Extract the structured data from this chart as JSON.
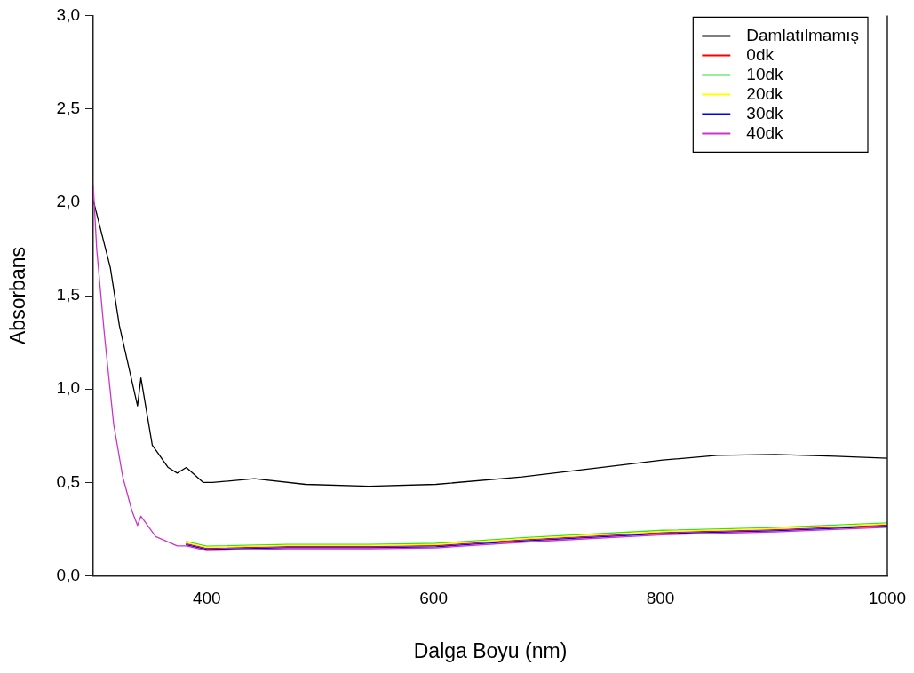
{
  "chart_data": {
    "type": "line",
    "xlabel": "Dalga Boyu (nm)",
    "ylabel": "Absorbans",
    "xlim": [
      300,
      1000
    ],
    "ylim": [
      0,
      3
    ],
    "xticks": [
      400,
      600,
      800,
      1000
    ],
    "yticks": [
      {
        "value": 0,
        "label": "0,0"
      },
      {
        "value": 0.5,
        "label": "0,5"
      },
      {
        "value": 1,
        "label": "1,0"
      },
      {
        "value": 1.5,
        "label": "1,5"
      },
      {
        "value": 2,
        "label": "2,0"
      },
      {
        "value": 2.5,
        "label": "2,5"
      },
      {
        "value": 3,
        "label": "3,0"
      }
    ],
    "grid": false,
    "legend": "top right",
    "marker": "none",
    "line_style": "solid",
    "series": [
      {
        "name": "Damlatılmamış",
        "color": "#000000",
        "x": [
          300,
          315,
          323,
          339,
          342,
          352,
          366,
          374,
          382,
          397,
          405,
          442,
          487,
          543,
          602,
          678,
          747,
          802,
          850,
          901,
          954,
          1000
        ],
        "values": [
          2.01,
          1.65,
          1.34,
          0.91,
          1.06,
          0.7,
          0.58,
          0.55,
          0.58,
          0.5,
          0.5,
          0.52,
          0.49,
          0.48,
          0.49,
          0.53,
          0.58,
          0.62,
          0.645,
          0.65,
          0.64,
          0.63
        ]
      },
      {
        "name": "0dk",
        "color": "#ff0000",
        "x": [
          382,
          400,
          471,
          543,
          602,
          678,
          802,
          901,
          1000
        ],
        "values": [
          0.172,
          0.147,
          0.157,
          0.157,
          0.162,
          0.192,
          0.232,
          0.247,
          0.272
        ]
      },
      {
        "name": "10dk",
        "color": "#33dd33",
        "x": [
          382,
          400,
          471,
          543,
          602,
          678,
          802,
          901,
          1000
        ],
        "values": [
          0.184,
          0.159,
          0.169,
          0.169,
          0.174,
          0.204,
          0.244,
          0.259,
          0.284
        ]
      },
      {
        "name": "20dk",
        "color": "#ffff00",
        "x": [
          382,
          400,
          471,
          543,
          602,
          678,
          802,
          901,
          1000
        ],
        "values": [
          0.178,
          0.153,
          0.163,
          0.163,
          0.168,
          0.198,
          0.238,
          0.253,
          0.278
        ]
      },
      {
        "name": "30dk",
        "color": "#0000ff",
        "x": [
          382,
          400,
          471,
          543,
          602,
          678,
          802,
          901,
          1000
        ],
        "values": [
          0.166,
          0.141,
          0.151,
          0.151,
          0.156,
          0.186,
          0.226,
          0.241,
          0.266
        ]
      },
      {
        "name": "40dk",
        "color": "#cc33cc",
        "x": [
          300,
          303,
          310,
          318,
          326,
          334,
          339,
          342,
          355,
          374,
          382,
          400,
          471,
          543,
          602,
          678,
          802,
          901,
          1000
        ],
        "values": [
          2.09,
          1.75,
          1.28,
          0.81,
          0.53,
          0.35,
          0.27,
          0.32,
          0.21,
          0.16,
          0.16,
          0.135,
          0.145,
          0.145,
          0.15,
          0.18,
          0.22,
          0.235,
          0.26
        ]
      }
    ]
  }
}
